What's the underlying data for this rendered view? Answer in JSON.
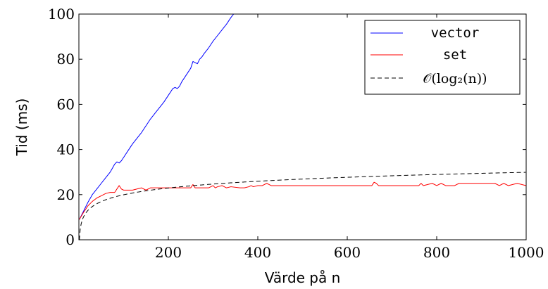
{
  "chart_data": {
    "type": "line",
    "xlabel": "Värde på n",
    "ylabel": "Tid (ms)",
    "xlim": [
      0,
      1000
    ],
    "ylim": [
      0,
      100
    ],
    "x_ticks": [
      200,
      400,
      600,
      800,
      1000
    ],
    "y_ticks": [
      0,
      20,
      40,
      60,
      80,
      100
    ],
    "legend_position": "top-right",
    "grid": false,
    "series": [
      {
        "name": "vector",
        "color": "#0000ff",
        "dash": "solid",
        "x": [
          1,
          10,
          20,
          30,
          40,
          50,
          60,
          70,
          80,
          85,
          90,
          95,
          100,
          110,
          120,
          130,
          140,
          150,
          160,
          170,
          180,
          190,
          200,
          210,
          215,
          220,
          225,
          230,
          240,
          250,
          255,
          260,
          265,
          270,
          275,
          280,
          290,
          300,
          310,
          320,
          330,
          340,
          346
        ],
        "y": [
          9,
          12.5,
          16.5,
          20,
          22.5,
          25,
          27.5,
          30,
          33.5,
          34.5,
          34,
          35,
          36.5,
          39.5,
          42.5,
          45,
          47.5,
          50.5,
          53.5,
          56,
          58.5,
          61,
          64,
          67,
          67.5,
          67,
          68,
          70,
          73,
          76,
          79,
          78.5,
          78,
          80,
          81,
          82.5,
          85,
          88,
          90.5,
          93,
          95.5,
          98.5,
          100
        ]
      },
      {
        "name": "set",
        "color": "#ff0000",
        "dash": "solid",
        "x": [
          1,
          10,
          20,
          30,
          40,
          50,
          60,
          70,
          80,
          90,
          95,
          100,
          120,
          140,
          150,
          160,
          200,
          250,
          255,
          260,
          270,
          290,
          300,
          305,
          310,
          320,
          330,
          340,
          360,
          370,
          380,
          385,
          390,
          400,
          410,
          420,
          430,
          500,
          600,
          655,
          660,
          665,
          670,
          700,
          760,
          765,
          770,
          780,
          790,
          800,
          810,
          820,
          840,
          850,
          900,
          930,
          940,
          950,
          960,
          980,
          1000
        ],
        "y": [
          9,
          12,
          15,
          17,
          18.5,
          19.5,
          20.5,
          21,
          21,
          24,
          22.5,
          22,
          22,
          23,
          22,
          23,
          23,
          23,
          24.5,
          23,
          23,
          23,
          24,
          23,
          23.5,
          24,
          23,
          23.5,
          23,
          23,
          23.5,
          24,
          23.5,
          24,
          24,
          25,
          24,
          24,
          24,
          24,
          25.5,
          25,
          24,
          24,
          24,
          25,
          24,
          24.5,
          25,
          24,
          25,
          24,
          24,
          25,
          25,
          25,
          24,
          25,
          24,
          25,
          24
        ]
      },
      {
        "name": "𝒪(log₂(n))",
        "color": "#000000",
        "dash": "dashed",
        "function": "3*log2(n)"
      }
    ]
  }
}
